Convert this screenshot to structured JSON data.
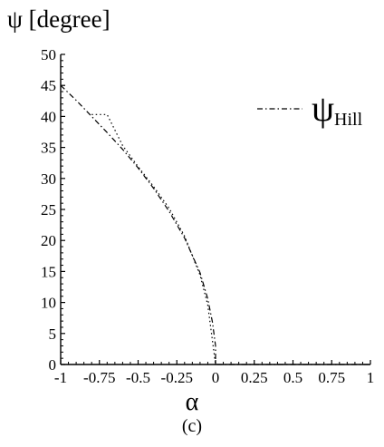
{
  "chart_data": {
    "type": "line",
    "ylabel": "ψ [degree]",
    "xlabel": "α",
    "caption": "(c)",
    "xlim": [
      -1,
      1
    ],
    "ylim": [
      0,
      50
    ],
    "x_ticks": [
      -1,
      -0.75,
      -0.5,
      -0.25,
      0,
      0.25,
      0.5,
      0.75,
      1
    ],
    "x_tick_labels": [
      "-1",
      "-0.75",
      "-0.5",
      "-0.25",
      "0",
      "0.25",
      "0.5",
      "0.75",
      "1"
    ],
    "y_ticks": [
      0,
      5,
      10,
      15,
      20,
      25,
      30,
      35,
      40,
      45,
      50
    ],
    "y_tick_labels": [
      "0",
      "5",
      "10",
      "15",
      "20",
      "25",
      "30",
      "35",
      "40",
      "45",
      "50"
    ],
    "legend": {
      "position": "top-right",
      "symbol": "ψ",
      "subscript": "Hill"
    },
    "series": [
      {
        "name": "ψHill",
        "style": "dash-dot",
        "x": [
          -1,
          -0.9,
          -0.8,
          -0.7,
          -0.6,
          -0.5,
          -0.4,
          -0.3,
          -0.2,
          -0.1,
          -0.05,
          -0.02,
          0,
          0,
          0.25,
          0.5,
          0.75,
          1
        ],
        "y": [
          45,
          42.6,
          40,
          37.4,
          34.7,
          31.7,
          28.4,
          24.7,
          20.4,
          14.8,
          10.6,
          6.8,
          3,
          0,
          0,
          0,
          0,
          0
        ]
      },
      {
        "name": "",
        "style": "dotted",
        "x": [
          -0.8,
          -0.7,
          -0.6,
          -0.5,
          -0.4,
          -0.3,
          -0.2,
          -0.1,
          -0.05,
          0
        ],
        "y": [
          40.3,
          40.3,
          35.3,
          31.9,
          28.7,
          25.2,
          20.7,
          14.4,
          9.6,
          0
        ]
      }
    ]
  }
}
